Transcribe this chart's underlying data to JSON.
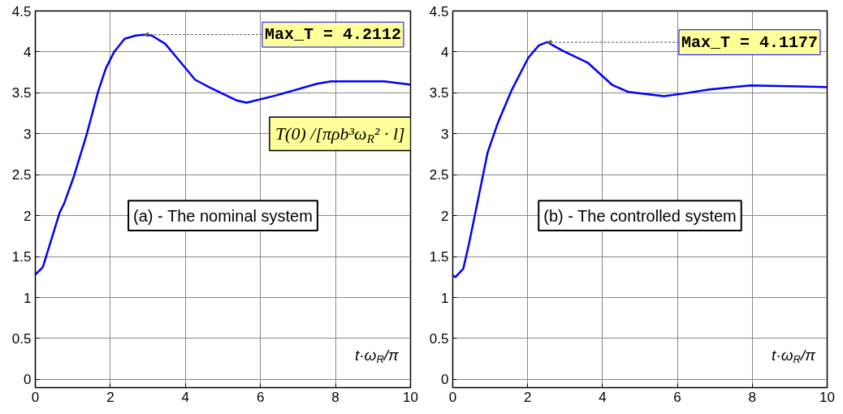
{
  "chart_data": [
    {
      "type": "line",
      "xlabel": "t·ω$_{R}$/π",
      "xlim": [
        0,
        10
      ],
      "ylim": [
        -0.1,
        4.5
      ],
      "xticks": [
        0,
        2,
        4,
        6,
        8,
        10
      ],
      "yticks": [
        0,
        0.5,
        1,
        1.5,
        2,
        2.5,
        3,
        3.5,
        4,
        4.5
      ],
      "grid": true,
      "x": [
        0,
        0.2,
        0.65,
        0.76,
        1.02,
        1.38,
        1.67,
        1.88,
        2.1,
        2.38,
        2.68,
        2.9,
        3.1,
        3.46,
        3.77,
        4.26,
        4.63,
        5.35,
        5.63,
        6.43,
        7.5,
        7.88,
        9.3,
        10
      ],
      "series": [
        {
          "color": "#0000ff",
          "values": [
            1.28,
            1.37,
            2.04,
            2.14,
            2.47,
            3.01,
            3.51,
            3.8,
            4.0,
            4.16,
            4.2,
            4.21,
            4.2,
            4.1,
            3.93,
            3.66,
            3.57,
            3.41,
            3.38,
            3.47,
            3.61,
            3.64,
            3.64,
            3.6
          ]
        }
      ],
      "annotations": [
        "(a) - The nominal system",
        {
          "text": "Max_T = 4.2112",
          "x": 2.9,
          "y": 4.2112
        },
        "T(0) /[πρb³ω$_{R}$² · l]"
      ]
    },
    {
      "type": "line",
      "xlabel": "t·ω$_{R}$/π",
      "xlim": [
        0,
        10
      ],
      "ylim": [
        -0.1,
        4.5
      ],
      "xticks": [
        0,
        2,
        4,
        6,
        8,
        10
      ],
      "yticks": [
        0,
        0.5,
        1,
        1.5,
        2,
        2.5,
        3,
        3.5,
        4,
        4.5
      ],
      "grid": true,
      "x": [
        0,
        0.07,
        0.28,
        0.43,
        0.65,
        0.93,
        1.21,
        1.58,
        2.02,
        2.3,
        2.52,
        2.95,
        3.6,
        4.25,
        4.69,
        5.64,
        6.14,
        6.85,
        7.94,
        9.02,
        10
      ],
      "series": [
        {
          "color": "#0000ff",
          "values": [
            1.27,
            1.25,
            1.35,
            1.65,
            2.14,
            2.77,
            3.14,
            3.54,
            3.93,
            4.08,
            4.12,
            4.01,
            3.87,
            3.6,
            3.51,
            3.46,
            3.49,
            3.54,
            3.59,
            3.58,
            3.57
          ]
        }
      ],
      "annotations": [
        "(b) - The controlled system",
        {
          "text": "Max_T = 4.1177",
          "x": 2.52,
          "y": 4.1177
        }
      ]
    }
  ]
}
